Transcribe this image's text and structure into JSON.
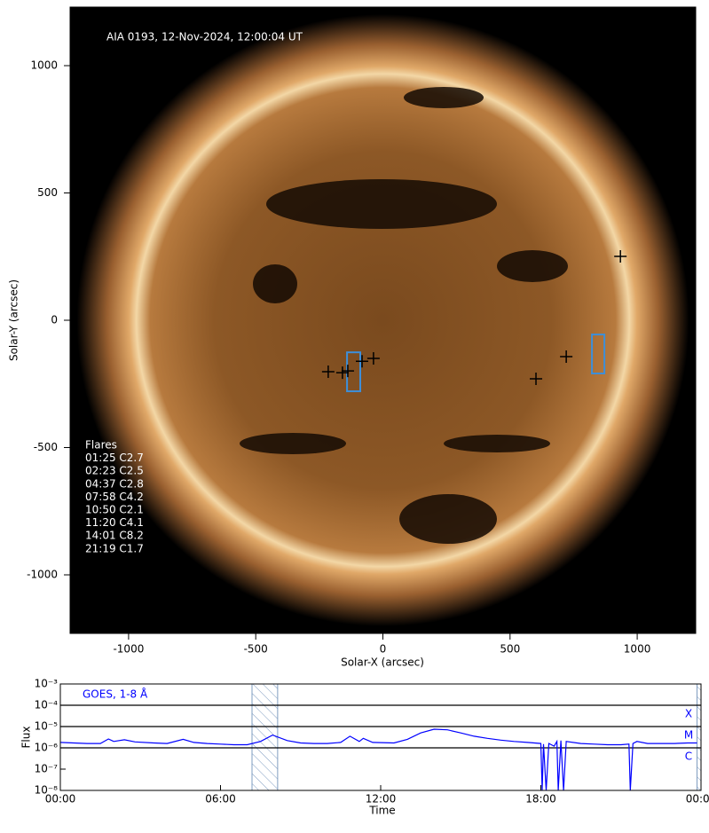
{
  "chart_data": [
    {
      "type": "image",
      "title": "AIA 0193, 12-Nov-2024, 12:00:04 UT",
      "xlabel": "Solar-X (arcsec)",
      "ylabel": "Solar-Y (arcsec)",
      "xlim": [
        -1230,
        1230
      ],
      "ylim": [
        -1230,
        1230
      ],
      "xticks": [
        -1000,
        -500,
        0,
        500,
        1000
      ],
      "yticks": [
        -1000,
        -500,
        0,
        500,
        1000
      ],
      "legend_title": "Flares",
      "flares": [
        "01:25 C2.7",
        "02:23 C2.5",
        "04:37 C2.8",
        "07:58 C4.2",
        "10:50 C2.1",
        "11:20 C4.1",
        "14:01 C8.2",
        "21:19 C1.7"
      ],
      "markers": {
        "color": "#000000",
        "x": [
          -215,
          -159,
          -138,
          -82,
          -37,
          602,
          721,
          934
        ],
        "y": [
          -202,
          -206,
          -199,
          -161,
          -150,
          -230,
          -143,
          251
        ]
      },
      "box_color": "#3d8fd9",
      "boxes": [
        {
          "x": [
            -141,
            -89
          ],
          "y": [
            -279,
            -126
          ]
        },
        {
          "x": [
            822,
            871
          ],
          "y": [
            -209,
            -56
          ]
        }
      ]
    },
    {
      "type": "line",
      "xlabel": "Time",
      "ylabel": "Flux",
      "xlim": [
        0,
        24
      ],
      "xticks": [
        {
          "value": 0,
          "label": "00:00"
        },
        {
          "value": 6,
          "label": "06:00"
        },
        {
          "value": 12,
          "label": "12:00"
        },
        {
          "value": 18,
          "label": "18:00"
        },
        {
          "value": 24,
          "label": "00:00"
        }
      ],
      "ylog": true,
      "ylim": [
        1e-08,
        0.001
      ],
      "yticks": [
        {
          "value": 1e-08,
          "label": "10⁻⁸"
        },
        {
          "value": 1e-07,
          "label": "10⁻⁷"
        },
        {
          "value": 1e-06,
          "label": "10⁻⁶"
        },
        {
          "value": 1e-05,
          "label": "10⁻⁵"
        },
        {
          "value": 0.0001,
          "label": "10⁻⁴"
        },
        {
          "value": 0.001,
          "label": "10⁻³"
        }
      ],
      "levels": [
        {
          "value": 0.0001,
          "label": "X"
        },
        {
          "value": 1e-05,
          "label": "M"
        },
        {
          "value": 1e-06,
          "label": "C"
        }
      ],
      "shaded": [
        [
          7.18,
          8.14
        ],
        [
          23.85,
          24
        ]
      ],
      "series": [
        {
          "name": "GOES, 1-8 Å",
          "color": "#0000ff",
          "x": [
            0,
            0.5,
            1.0,
            1.5,
            1.8,
            2.0,
            2.4,
            2.8,
            3.5,
            4.0,
            4.6,
            5.0,
            5.5,
            6.0,
            6.5,
            7.0,
            7.5,
            7.95,
            8.5,
            9.0,
            9.5,
            10.0,
            10.5,
            10.85,
            11.2,
            11.35,
            11.7,
            12.5,
            13.0,
            13.5,
            14.0,
            14.5,
            15.0,
            15.5,
            16.0,
            16.5,
            17.0,
            17.5,
            18.0,
            18.05,
            18.1,
            18.2,
            18.3,
            18.5,
            18.6,
            18.65,
            18.75,
            18.85,
            18.95,
            19.5,
            20.0,
            20.5,
            21.0,
            21.3,
            21.35,
            21.45,
            21.6,
            22.0,
            22.5,
            23.0,
            23.5,
            23.85
          ],
          "values": [
            1.8e-06,
            1.7e-06,
            1.6e-06,
            1.6e-06,
            2.6e-06,
            2e-06,
            2.4e-06,
            1.9e-06,
            1.7e-06,
            1.6e-06,
            2.5e-06,
            1.8e-06,
            1.6e-06,
            1.5e-06,
            1.4e-06,
            1.4e-06,
            2e-06,
            4e-06,
            2.2e-06,
            1.7e-06,
            1.6e-06,
            1.6e-06,
            1.8e-06,
            3.5e-06,
            2e-06,
            2.8e-06,
            1.8e-06,
            1.7e-06,
            2.5e-06,
            5e-06,
            7.5e-06,
            7e-06,
            5e-06,
            3.5e-06,
            2.8e-06,
            2.3e-06,
            2e-06,
            1.8e-06,
            1.6e-06,
            1e-08,
            1.5e-06,
            1e-08,
            1.6e-06,
            1.2e-06,
            2e-06,
            1e-08,
            2.2e-06,
            1e-08,
            2e-06,
            1.6e-06,
            1.5e-06,
            1.4e-06,
            1.4e-06,
            1.5e-06,
            1e-08,
            1.6e-06,
            2e-06,
            1.6e-06,
            1.6e-06,
            1.6e-06,
            1.7e-06,
            1.7e-06
          ]
        }
      ]
    }
  ]
}
